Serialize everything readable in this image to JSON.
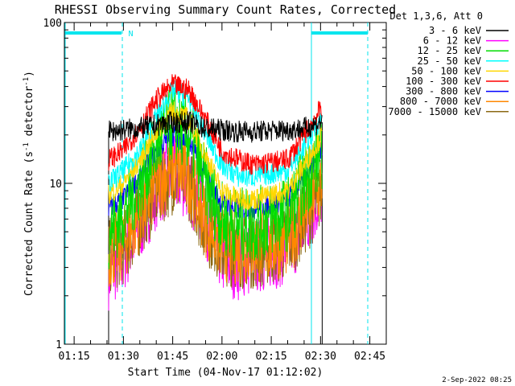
{
  "chart_data": {
    "type": "line",
    "title": "RHESSI Observing Summary Count Rates, Corrected",
    "xlabel": "Start Time (04-Nov-17 01:12:02)",
    "ylabel": "Corrected Count Rate (s⁻¹ detector⁻¹)",
    "ylabel_parts": [
      "Corrected Count Rate (s",
      "-1",
      " detector",
      "-1",
      ")"
    ],
    "yscale": "log",
    "ylim": [
      1,
      100
    ],
    "yticks": [
      1,
      10,
      100
    ],
    "ytick_labels": [
      "1",
      "10",
      "100"
    ],
    "xlim_minutes": [
      72.03,
      170
    ],
    "xticks_minutes": [
      75,
      90,
      105,
      120,
      135,
      150,
      165
    ],
    "xtick_labels": [
      "01:15",
      "01:30",
      "01:45",
      "02:00",
      "02:15",
      "02:30",
      "02:45"
    ],
    "legend_title": "Det 1,3,6, Att 0",
    "legend_position": "right",
    "data_start_minutes": 85.5,
    "data_end_minutes": 150.5,
    "series": [
      {
        "name": "3 - 6 keV",
        "color": "#000000",
        "values": [
          21,
          21.5,
          22,
          23,
          24,
          24,
          22,
          21.5,
          21,
          21,
          21.5,
          22,
          24
        ]
      },
      {
        "name": "6 - 12 keV",
        "color": "#ff00ff",
        "values": [
          2.8,
          3.5,
          5.5,
          9,
          11.5,
          10,
          6,
          3.5,
          3.2,
          3.5,
          4,
          5.5,
          9
        ]
      },
      {
        "name": "12 - 25 keV",
        "color": "#00dd00",
        "values": [
          5,
          6.5,
          10,
          17,
          24,
          20,
          10,
          6,
          5.5,
          5.5,
          6.5,
          10,
          16
        ]
      },
      {
        "name": "25 - 50 keV",
        "color": "#00ffff",
        "values": [
          10,
          12,
          16,
          26,
          38,
          34,
          20,
          13,
          11,
          11,
          12,
          17,
          26
        ]
      },
      {
        "name": "50 - 100 keV",
        "color": "#ffd700",
        "values": [
          8.5,
          10,
          14,
          21,
          28,
          25,
          15,
          9,
          8,
          8,
          9,
          13,
          20
        ]
      },
      {
        "name": "100 - 300 keV",
        "color": "#ff0000",
        "values": [
          14,
          16,
          22,
          33,
          41,
          38,
          25,
          16,
          14,
          13,
          14,
          20,
          30
        ]
      },
      {
        "name": "300 - 800 keV",
        "color": "#0000ff",
        "values": [
          7,
          8,
          11,
          16,
          20,
          18,
          11,
          7.5,
          7,
          7,
          8,
          11,
          17
        ]
      },
      {
        "name": "800 - 7000 keV",
        "color": "#ff8800",
        "values": [
          3.8,
          4.2,
          6.5,
          10,
          12.5,
          11,
          6,
          4.2,
          4,
          4,
          4.5,
          6.5,
          10
        ]
      },
      {
        "name": "7000 - 15000 keV",
        "color": "#8b6914",
        "values": [
          3.5,
          4,
          6,
          9,
          11,
          10,
          5.5,
          4,
          3.8,
          3.8,
          4.2,
          6,
          9
        ]
      }
    ],
    "series_x_minutes": [
      85.5,
      90,
      95,
      100,
      105,
      110,
      115,
      120,
      125,
      130,
      140,
      145,
      150.5
    ],
    "annotations": [
      {
        "text": "N",
        "x_minutes": 91
      }
    ],
    "footer_date": "2-Sep-2022 08:25"
  }
}
